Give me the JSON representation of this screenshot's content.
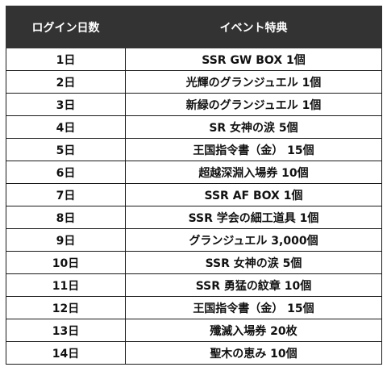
{
  "header": {
    "day_label": "ログイン日数",
    "reward_label": "イベント特典"
  },
  "rows": [
    {
      "day": "1日",
      "reward": "SSR GW BOX 1個"
    },
    {
      "day": "2日",
      "reward": "光輝のグランジュエル 1個"
    },
    {
      "day": "3日",
      "reward": "新緑のグランジュエル 1個"
    },
    {
      "day": "4日",
      "reward": "SR 女神の涙 5個"
    },
    {
      "day": "5日",
      "reward": "王国指令書（金） 15個"
    },
    {
      "day": "6日",
      "reward": "超越深淵入場券 10個"
    },
    {
      "day": "7日",
      "reward": "SSR AF BOX 1個"
    },
    {
      "day": "8日",
      "reward": "SSR 学会の細工道具 1個"
    },
    {
      "day": "9日",
      "reward": "グランジュエル 3,000個"
    },
    {
      "day": "10日",
      "reward": "SSR 女神の涙 5個"
    },
    {
      "day": "11日",
      "reward": "SSR 勇猛の紋章 10個"
    },
    {
      "day": "12日",
      "reward": "王国指令書（金） 15個"
    },
    {
      "day": "13日",
      "reward": "殲滅入場券 20枚"
    },
    {
      "day": "14日",
      "reward": "聖木の恵み 10個"
    }
  ]
}
